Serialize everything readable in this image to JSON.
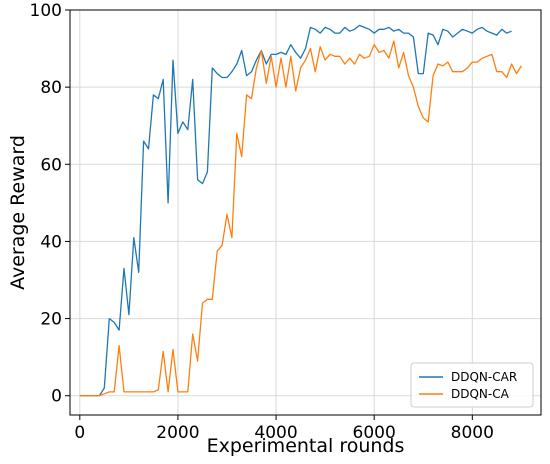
{
  "chart_data": {
    "type": "line",
    "title": "",
    "xlabel": "Experimental rounds",
    "ylabel": "Average Reward",
    "xlim": [
      -200,
      9400
    ],
    "ylim": [
      -5,
      100
    ],
    "xticks": [
      0,
      2000,
      4000,
      6000,
      8000
    ],
    "yticks": [
      0,
      20,
      40,
      60,
      80,
      100
    ],
    "grid": true,
    "legend_position": "lower-right",
    "series": [
      {
        "name": "DDQN-CAR",
        "color": "#1f77b4",
        "points": [
          [
            0,
            0
          ],
          [
            100,
            0
          ],
          [
            200,
            0
          ],
          [
            300,
            0
          ],
          [
            400,
            0
          ],
          [
            500,
            2
          ],
          [
            600,
            20
          ],
          [
            700,
            19
          ],
          [
            800,
            17
          ],
          [
            900,
            33
          ],
          [
            1000,
            21
          ],
          [
            1100,
            41
          ],
          [
            1200,
            32
          ],
          [
            1300,
            66
          ],
          [
            1400,
            64
          ],
          [
            1500,
            78
          ],
          [
            1600,
            77
          ],
          [
            1700,
            82
          ],
          [
            1800,
            50
          ],
          [
            1900,
            87
          ],
          [
            2000,
            68
          ],
          [
            2100,
            71
          ],
          [
            2200,
            69
          ],
          [
            2300,
            82
          ],
          [
            2400,
            56
          ],
          [
            2500,
            55
          ],
          [
            2600,
            58
          ],
          [
            2700,
            85
          ],
          [
            2800,
            83.5
          ],
          [
            2900,
            82.5
          ],
          [
            3000,
            82.5
          ],
          [
            3100,
            84
          ],
          [
            3200,
            86
          ],
          [
            3300,
            89.5
          ],
          [
            3400,
            83
          ],
          [
            3500,
            84
          ],
          [
            3600,
            87
          ],
          [
            3700,
            89.5
          ],
          [
            3800,
            86
          ],
          [
            3900,
            88.5
          ],
          [
            4000,
            88.5
          ],
          [
            4100,
            89
          ],
          [
            4200,
            88.5
          ],
          [
            4300,
            91
          ],
          [
            4400,
            89
          ],
          [
            4500,
            87.5
          ],
          [
            4600,
            90
          ],
          [
            4700,
            95.5
          ],
          [
            4800,
            95
          ],
          [
            4900,
            94
          ],
          [
            5000,
            95.5
          ],
          [
            5100,
            95
          ],
          [
            5200,
            94
          ],
          [
            5300,
            94
          ],
          [
            5400,
            95.5
          ],
          [
            5500,
            94.5
          ],
          [
            5600,
            95
          ],
          [
            5700,
            96
          ],
          [
            5800,
            95.5
          ],
          [
            5900,
            95
          ],
          [
            6000,
            94
          ],
          [
            6100,
            95
          ],
          [
            6200,
            95
          ],
          [
            6300,
            95.5
          ],
          [
            6400,
            94.5
          ],
          [
            6500,
            95
          ],
          [
            6600,
            94
          ],
          [
            6700,
            94
          ],
          [
            6800,
            93
          ],
          [
            6900,
            83.5
          ],
          [
            7000,
            83.5
          ],
          [
            7100,
            94
          ],
          [
            7200,
            93.5
          ],
          [
            7300,
            91
          ],
          [
            7400,
            95
          ],
          [
            7500,
            94.5
          ],
          [
            7600,
            93
          ],
          [
            7700,
            94
          ],
          [
            7800,
            95
          ],
          [
            7900,
            94.5
          ],
          [
            8000,
            94
          ],
          [
            8100,
            95
          ],
          [
            8200,
            95.5
          ],
          [
            8300,
            94.5
          ],
          [
            8400,
            94
          ],
          [
            8500,
            93.5
          ],
          [
            8600,
            95
          ],
          [
            8700,
            94
          ],
          [
            8800,
            94.5
          ]
        ]
      },
      {
        "name": "DDQN-CA",
        "color": "#ff7f0e",
        "points": [
          [
            0,
            0
          ],
          [
            100,
            0
          ],
          [
            200,
            0
          ],
          [
            300,
            0
          ],
          [
            400,
            0
          ],
          [
            500,
            0.5
          ],
          [
            600,
            1
          ],
          [
            700,
            1
          ],
          [
            800,
            13
          ],
          [
            900,
            1
          ],
          [
            1000,
            1
          ],
          [
            1100,
            1
          ],
          [
            1200,
            1
          ],
          [
            1300,
            1
          ],
          [
            1400,
            1
          ],
          [
            1500,
            1
          ],
          [
            1600,
            1.5
          ],
          [
            1700,
            11.5
          ],
          [
            1800,
            1
          ],
          [
            1900,
            12
          ],
          [
            2000,
            1
          ],
          [
            2100,
            1
          ],
          [
            2200,
            1
          ],
          [
            2300,
            16
          ],
          [
            2400,
            9
          ],
          [
            2500,
            24
          ],
          [
            2600,
            25
          ],
          [
            2700,
            25
          ],
          [
            2800,
            37.5
          ],
          [
            2900,
            39
          ],
          [
            3000,
            47
          ],
          [
            3100,
            41
          ],
          [
            3200,
            68
          ],
          [
            3300,
            62
          ],
          [
            3400,
            78
          ],
          [
            3500,
            77
          ],
          [
            3600,
            85
          ],
          [
            3700,
            89.5
          ],
          [
            3800,
            81
          ],
          [
            3900,
            88
          ],
          [
            4000,
            80
          ],
          [
            4100,
            87.5
          ],
          [
            4200,
            80
          ],
          [
            4300,
            88
          ],
          [
            4400,
            79
          ],
          [
            4500,
            85
          ],
          [
            4600,
            87
          ],
          [
            4700,
            90
          ],
          [
            4800,
            84
          ],
          [
            4900,
            90.5
          ],
          [
            5000,
            87
          ],
          [
            5100,
            88.5
          ],
          [
            5200,
            88
          ],
          [
            5300,
            88
          ],
          [
            5400,
            86
          ],
          [
            5500,
            87.5
          ],
          [
            5600,
            86
          ],
          [
            5700,
            88.5
          ],
          [
            5800,
            87.5
          ],
          [
            5900,
            88
          ],
          [
            6000,
            91
          ],
          [
            6100,
            89
          ],
          [
            6200,
            89.5
          ],
          [
            6300,
            87.5
          ],
          [
            6400,
            92
          ],
          [
            6500,
            85
          ],
          [
            6600,
            89
          ],
          [
            6700,
            83
          ],
          [
            6800,
            80
          ],
          [
            6900,
            75
          ],
          [
            7000,
            72
          ],
          [
            7100,
            71
          ],
          [
            7200,
            83
          ],
          [
            7300,
            86
          ],
          [
            7400,
            85.5
          ],
          [
            7500,
            86.5
          ],
          [
            7600,
            84
          ],
          [
            7700,
            84
          ],
          [
            7800,
            84
          ],
          [
            7900,
            85
          ],
          [
            8000,
            86.5
          ],
          [
            8100,
            86.5
          ],
          [
            8200,
            87.5
          ],
          [
            8300,
            88
          ],
          [
            8400,
            88.5
          ],
          [
            8500,
            84
          ],
          [
            8600,
            84
          ],
          [
            8700,
            82.5
          ],
          [
            8800,
            86
          ],
          [
            8900,
            83.5
          ],
          [
            9000,
            85.5
          ]
        ]
      }
    ]
  }
}
